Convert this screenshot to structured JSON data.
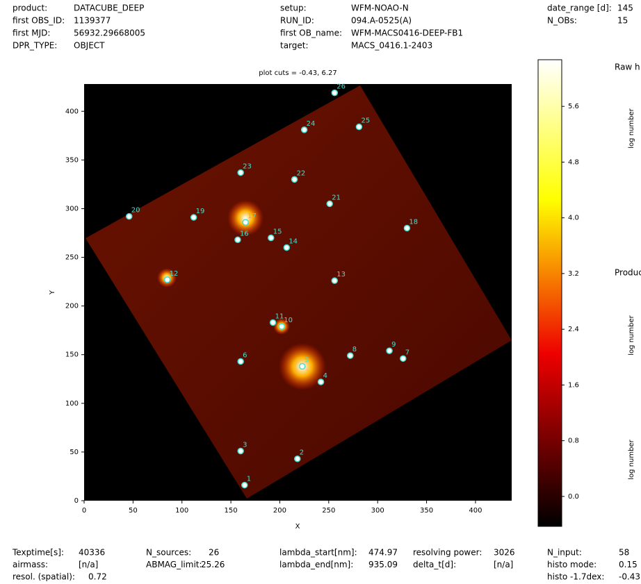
{
  "header": {
    "columns": [
      [
        [
          "product:",
          "DATACUBE_DEEP"
        ],
        [
          "first OBS_ID:",
          "1139377"
        ],
        [
          "first MJD:",
          "56932.29668005"
        ],
        [
          "DPR_TYPE:",
          "OBJECT"
        ]
      ],
      [
        [
          "setup:",
          "WFM-NOAO-N"
        ],
        [
          "RUN_ID:",
          "094.A-0525(A)"
        ],
        [
          "first OB_name:",
          "WFM-MACS0416-DEEP-FB1"
        ],
        [
          "target:",
          "MACS_0416.1-2403"
        ]
      ],
      [
        [
          "date_range [d]:",
          "145"
        ],
        [
          "N_OBs:",
          "15"
        ]
      ]
    ]
  },
  "chart_data": {
    "type": "image",
    "title": "plot cuts = -0.43, 6.27",
    "xlabel": "X",
    "ylabel": "Y",
    "xlim": [
      0,
      437
    ],
    "ylim": [
      0,
      428
    ],
    "xticks": [
      0,
      50,
      100,
      150,
      200,
      250,
      300,
      350,
      400
    ],
    "yticks": [
      0,
      50,
      100,
      150,
      200,
      250,
      300,
      350,
      400
    ],
    "colorbar": {
      "lim": [
        -0.43,
        6.27
      ],
      "ticks": [
        {
          "value": 0,
          "label": "0.0"
        },
        0.8,
        1.6,
        2.4,
        3.2,
        {
          "value": 4,
          "label": "4.0"
        },
        4.8,
        5.6
      ]
    },
    "sources": {
      "color": "#40e0d0",
      "labels": [
        "1",
        "2",
        "3",
        "4",
        "5",
        "6",
        "7",
        "8",
        "9",
        "10",
        "11",
        "12",
        "13",
        "14",
        "15",
        "16",
        "17",
        "18",
        "19",
        "20",
        "21",
        "22",
        "23",
        "24",
        "25",
        "26"
      ],
      "x": [
        164,
        218,
        160,
        242,
        223,
        160,
        326,
        272,
        312,
        202,
        193,
        85,
        256,
        207,
        191,
        157,
        165,
        330,
        112,
        46,
        251,
        215,
        160,
        225,
        281,
        256
      ],
      "y": [
        16,
        43,
        51,
        122,
        138,
        143,
        146,
        149,
        154,
        179,
        183,
        227,
        226,
        260,
        270,
        268,
        286,
        280,
        291,
        292,
        305,
        330,
        337,
        381,
        384,
        419
      ]
    }
  },
  "side": {
    "panel_titles": [
      "Raw h",
      "Produc"
    ],
    "axis_labels": [
      "log number",
      "log number",
      "log number"
    ]
  },
  "footer": {
    "columns": [
      [
        [
          "Texptime[s]:",
          "40336"
        ],
        [
          "airmass:",
          "[n/a]"
        ],
        [
          "resol. (spatial):",
          "0.72"
        ]
      ],
      [
        [
          "N_sources:",
          "26"
        ],
        [
          "ABMAG_limit:",
          "25.26"
        ]
      ],
      [
        [
          "lambda_start[nm]:",
          "474.97"
        ],
        [
          "lambda_end[nm]:",
          "935.09"
        ]
      ],
      [
        [
          "resolving power:",
          "3026"
        ],
        [
          "delta_t[d]:",
          "[n/a]"
        ]
      ],
      [
        [
          "N_input:",
          "58"
        ],
        [
          "histo mode:",
          "0.15"
        ],
        [
          "histo -1.7dex:",
          "-0.43"
        ]
      ]
    ]
  }
}
